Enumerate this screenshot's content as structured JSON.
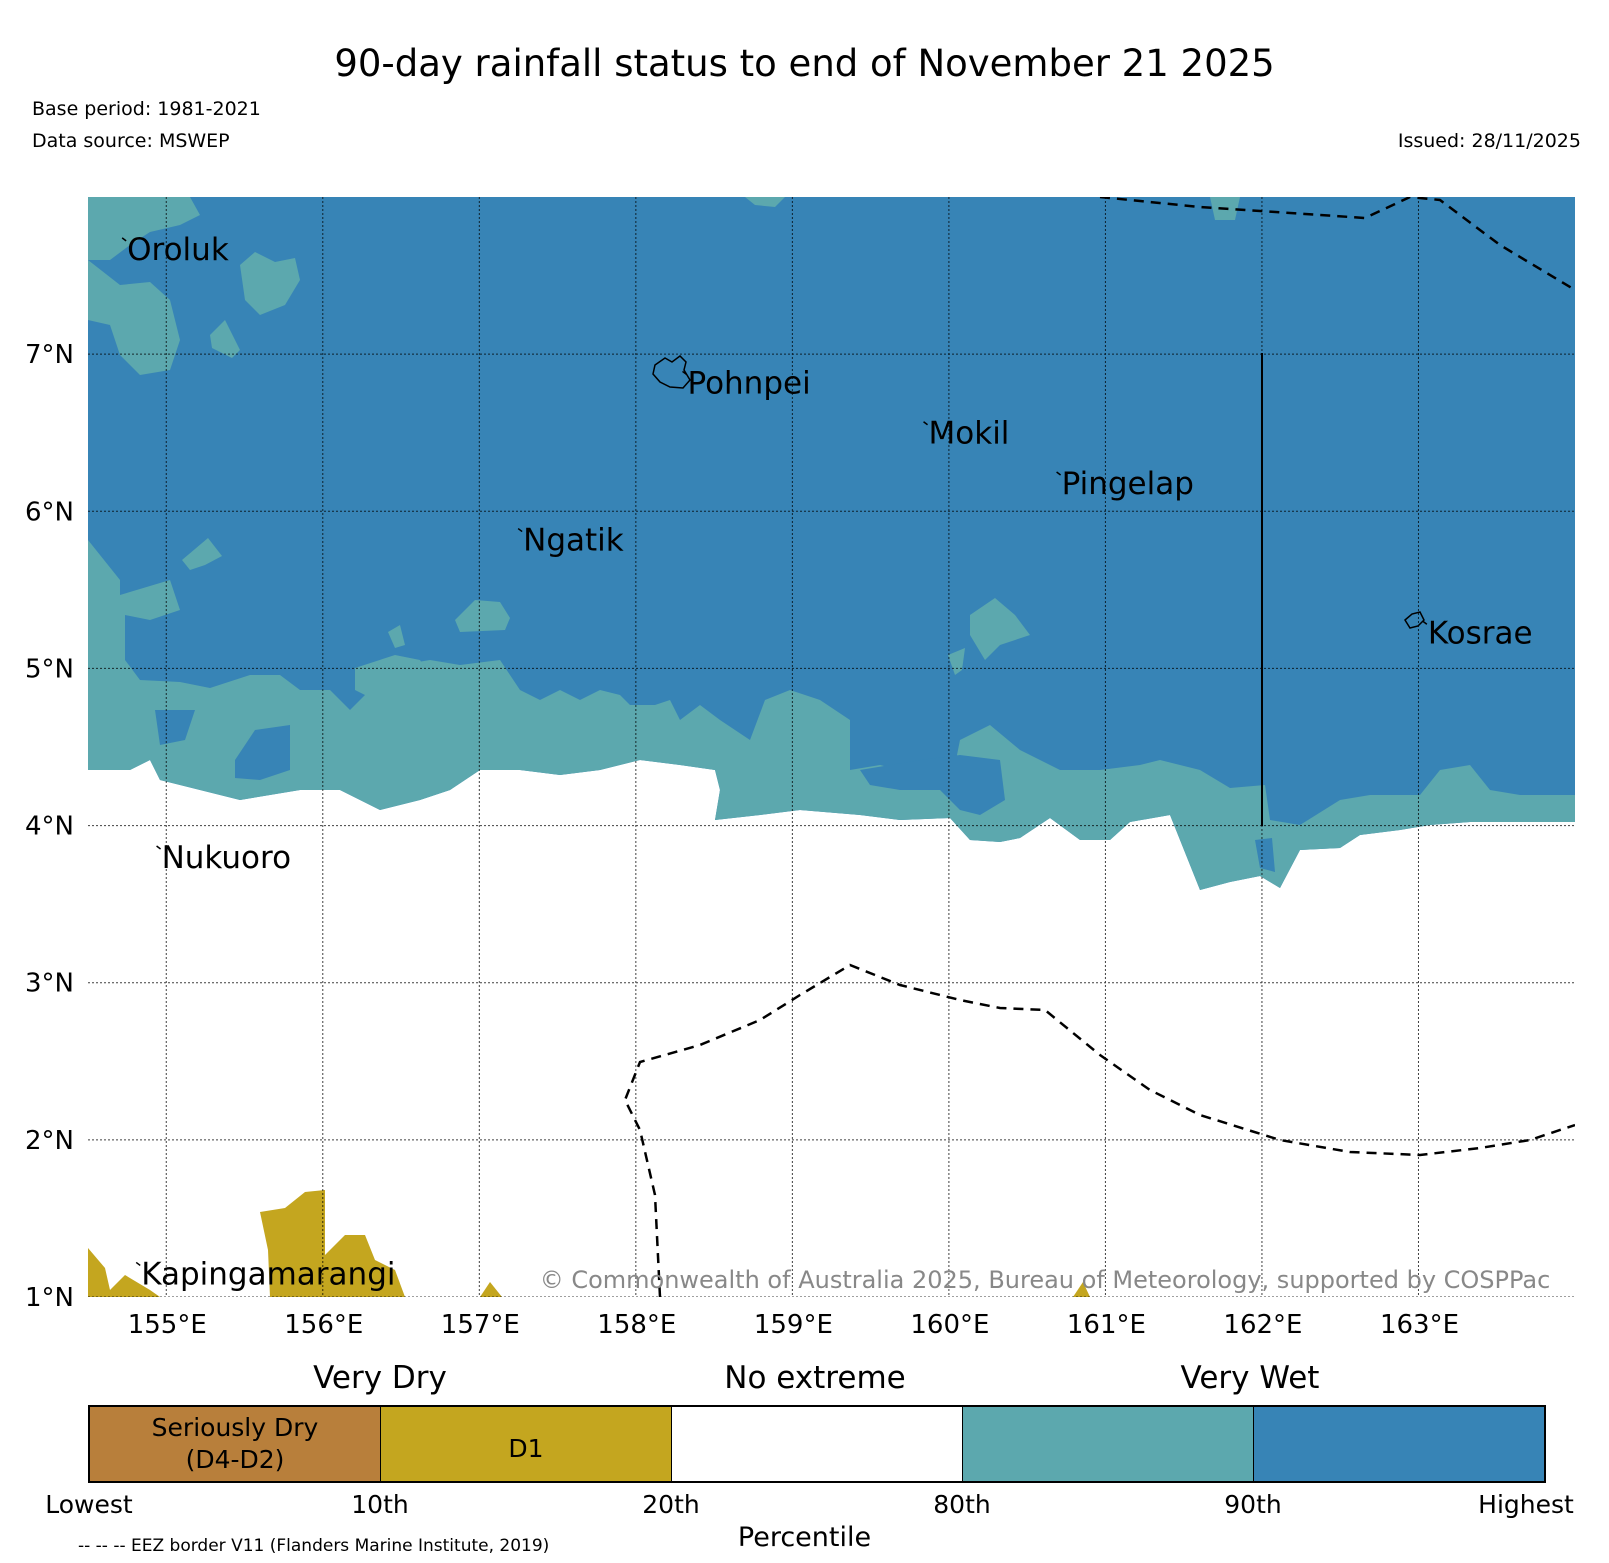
{
  "title": "90-day rainfall status to end of November 21 2025",
  "base_period": "Base period: 1981-2021",
  "data_source": "Data source: MSWEP",
  "issued": "Issued: 28/11/2025",
  "copyright": "© Commonwealth of Australia 2025, Bureau of Meteorology, supported by COSPPac",
  "map": {
    "lon_range": [
      154.5,
      164.0
    ],
    "lat_range": [
      1.0,
      8.0
    ],
    "lon_ticks": [
      {
        "v": 155,
        "label": "155°E"
      },
      {
        "v": 156,
        "label": "156°E"
      },
      {
        "v": 157,
        "label": "157°E"
      },
      {
        "v": 158,
        "label": "158°E"
      },
      {
        "v": 159,
        "label": "159°E"
      },
      {
        "v": 160,
        "label": "160°E"
      },
      {
        "v": 161,
        "label": "161°E"
      },
      {
        "v": 162,
        "label": "162°E"
      },
      {
        "v": 163,
        "label": "163°E"
      }
    ],
    "lat_ticks": [
      {
        "v": 1,
        "label": "1°N"
      },
      {
        "v": 2,
        "label": "2°N"
      },
      {
        "v": 3,
        "label": "3°N"
      },
      {
        "v": 4,
        "label": "4°N"
      },
      {
        "v": 5,
        "label": "5°N"
      },
      {
        "v": 6,
        "label": "6°N"
      },
      {
        "v": 7,
        "label": "7°N"
      }
    ],
    "places": [
      {
        "name": "Oroluk",
        "lon": 154.75,
        "lat": 7.6
      },
      {
        "name": "Pohnpei",
        "lon": 158.33,
        "lat": 6.75
      },
      {
        "name": "Mokil",
        "lon": 159.87,
        "lat": 6.43
      },
      {
        "name": "Pingelap",
        "lon": 160.72,
        "lat": 6.11
      },
      {
        "name": "Ngatik",
        "lon": 157.28,
        "lat": 5.75
      },
      {
        "name": "Kosrae",
        "lon": 163.06,
        "lat": 5.16
      },
      {
        "name": "Nukuoro",
        "lon": 154.97,
        "lat": 3.73
      },
      {
        "name": "Kapingamarangi",
        "lon": 154.84,
        "lat": 1.08
      }
    ],
    "colors": {
      "very_wet": "#3784b6",
      "wet": "#5ca8ae",
      "no_extreme": "#ffffff",
      "d1": "#c4a61f",
      "seriously_dry": "#b87f3b"
    }
  },
  "legend": {
    "very_dry": "Very Dry",
    "no_extreme": "No extreme",
    "very_wet": "Very Wet",
    "seriously_dry_line1": "Seriously Dry",
    "seriously_dry_line2": "(D4-D2)",
    "d1": "D1",
    "percentiles": [
      "Lowest",
      "10th",
      "20th",
      "80th",
      "90th",
      "Highest"
    ],
    "percentile_title": "Percentile"
  },
  "eez_note": "-- -- -- EEZ border V11 (Flanders Marine Institute, 2019)"
}
